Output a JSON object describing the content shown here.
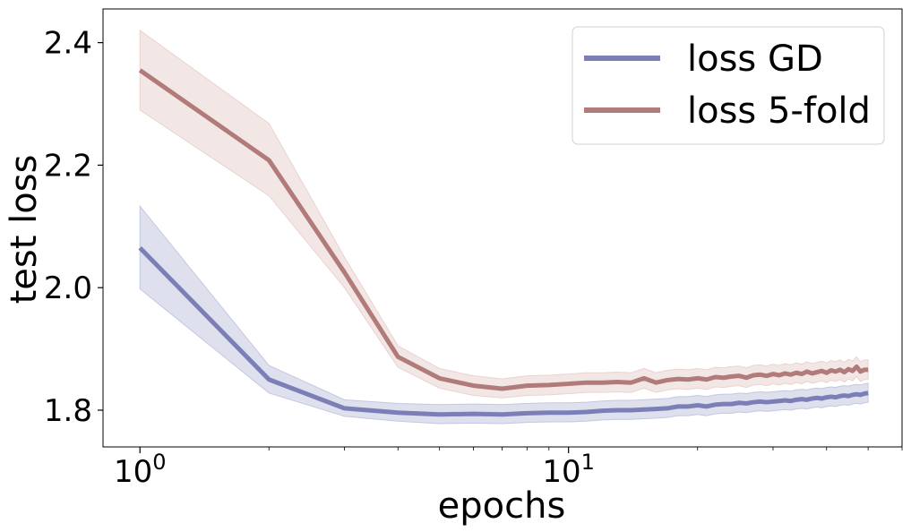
{
  "chart_data": {
    "type": "line",
    "xscale": "log",
    "title": "",
    "xlabel": "epochs",
    "ylabel": "test loss",
    "xlim": [
      0.82,
      60
    ],
    "ylim": [
      1.74,
      2.455
    ],
    "grid": false,
    "legend_position": "top-right",
    "x_ticks": [
      {
        "value": 1,
        "base": "10",
        "exp": "0"
      },
      {
        "value": 10,
        "base": "10",
        "exp": "1"
      }
    ],
    "y_ticks": [
      {
        "value": 1.8,
        "label": "1.8"
      },
      {
        "value": 2.0,
        "label": "2.0"
      },
      {
        "value": 2.2,
        "label": "2.2"
      },
      {
        "value": 2.4,
        "label": "2.4"
      }
    ],
    "x": [
      1,
      2,
      3,
      4,
      5,
      6,
      7,
      8,
      9,
      10,
      11,
      12,
      13,
      14,
      15,
      16,
      17,
      18,
      19,
      20,
      21,
      22,
      23,
      24,
      25,
      26,
      27,
      28,
      29,
      30,
      31,
      32,
      33,
      34,
      35,
      36,
      37,
      38,
      39,
      40,
      41,
      42,
      43,
      44,
      45,
      46,
      47,
      48,
      49,
      50
    ],
    "series": [
      {
        "name": "loss GD",
        "color": "#7b7fb5",
        "band_color": "#c5c7e0",
        "values": [
          2.065,
          1.85,
          1.803,
          1.796,
          1.793,
          1.794,
          1.793,
          1.795,
          1.796,
          1.796,
          1.797,
          1.799,
          1.8,
          1.8,
          1.801,
          1.802,
          1.803,
          1.806,
          1.806,
          1.808,
          1.806,
          1.809,
          1.81,
          1.81,
          1.812,
          1.811,
          1.813,
          1.814,
          1.813,
          1.814,
          1.815,
          1.816,
          1.815,
          1.817,
          1.818,
          1.817,
          1.819,
          1.82,
          1.819,
          1.821,
          1.822,
          1.821,
          1.823,
          1.824,
          1.823,
          1.825,
          1.826,
          1.825,
          1.827,
          1.828
        ],
        "upper": [
          2.133,
          1.873,
          1.817,
          1.811,
          1.809,
          1.81,
          1.809,
          1.811,
          1.812,
          1.812,
          1.813,
          1.815,
          1.816,
          1.816,
          1.817,
          1.818,
          1.819,
          1.822,
          1.822,
          1.824,
          1.822,
          1.825,
          1.826,
          1.826,
          1.828,
          1.827,
          1.829,
          1.83,
          1.829,
          1.83,
          1.831,
          1.832,
          1.831,
          1.833,
          1.834,
          1.833,
          1.835,
          1.836,
          1.835,
          1.837,
          1.838,
          1.837,
          1.839,
          1.84,
          1.839,
          1.841,
          1.842,
          1.841,
          1.843,
          1.844
        ],
        "lower": [
          1.998,
          1.828,
          1.79,
          1.782,
          1.778,
          1.779,
          1.778,
          1.78,
          1.781,
          1.781,
          1.782,
          1.784,
          1.785,
          1.785,
          1.786,
          1.787,
          1.788,
          1.791,
          1.791,
          1.793,
          1.791,
          1.794,
          1.795,
          1.795,
          1.797,
          1.796,
          1.798,
          1.799,
          1.798,
          1.799,
          1.8,
          1.801,
          1.8,
          1.802,
          1.803,
          1.802,
          1.804,
          1.805,
          1.804,
          1.806,
          1.807,
          1.806,
          1.808,
          1.809,
          1.808,
          1.81,
          1.811,
          1.81,
          1.812,
          1.813
        ]
      },
      {
        "name": "loss 5-fold",
        "color": "#b07b78",
        "band_color": "#e9d3d1",
        "values": [
          2.355,
          2.208,
          2.025,
          1.887,
          1.852,
          1.84,
          1.835,
          1.84,
          1.841,
          1.843,
          1.845,
          1.845,
          1.846,
          1.845,
          1.852,
          1.845,
          1.849,
          1.851,
          1.85,
          1.852,
          1.85,
          1.854,
          1.853,
          1.855,
          1.856,
          1.853,
          1.857,
          1.858,
          1.856,
          1.859,
          1.857,
          1.86,
          1.858,
          1.861,
          1.859,
          1.863,
          1.86,
          1.862,
          1.864,
          1.861,
          1.865,
          1.863,
          1.866,
          1.862,
          1.867,
          1.864,
          1.871,
          1.863,
          1.866,
          1.866
        ],
        "upper": [
          2.42,
          2.268,
          2.05,
          1.905,
          1.868,
          1.856,
          1.851,
          1.856,
          1.857,
          1.859,
          1.861,
          1.861,
          1.862,
          1.861,
          1.868,
          1.861,
          1.865,
          1.867,
          1.866,
          1.868,
          1.866,
          1.87,
          1.869,
          1.871,
          1.872,
          1.869,
          1.873,
          1.874,
          1.872,
          1.875,
          1.873,
          1.876,
          1.874,
          1.877,
          1.875,
          1.879,
          1.876,
          1.878,
          1.88,
          1.877,
          1.881,
          1.879,
          1.882,
          1.878,
          1.883,
          1.88,
          1.887,
          1.879,
          1.882,
          1.882
        ],
        "lower": [
          2.29,
          2.15,
          2.0,
          1.87,
          1.836,
          1.824,
          1.82,
          1.824,
          1.825,
          1.827,
          1.829,
          1.829,
          1.83,
          1.829,
          1.836,
          1.829,
          1.833,
          1.835,
          1.834,
          1.836,
          1.834,
          1.838,
          1.837,
          1.839,
          1.84,
          1.837,
          1.841,
          1.842,
          1.84,
          1.843,
          1.841,
          1.844,
          1.842,
          1.845,
          1.843,
          1.847,
          1.844,
          1.846,
          1.848,
          1.845,
          1.849,
          1.847,
          1.85,
          1.846,
          1.851,
          1.848,
          1.855,
          1.847,
          1.85,
          1.85
        ]
      }
    ]
  }
}
